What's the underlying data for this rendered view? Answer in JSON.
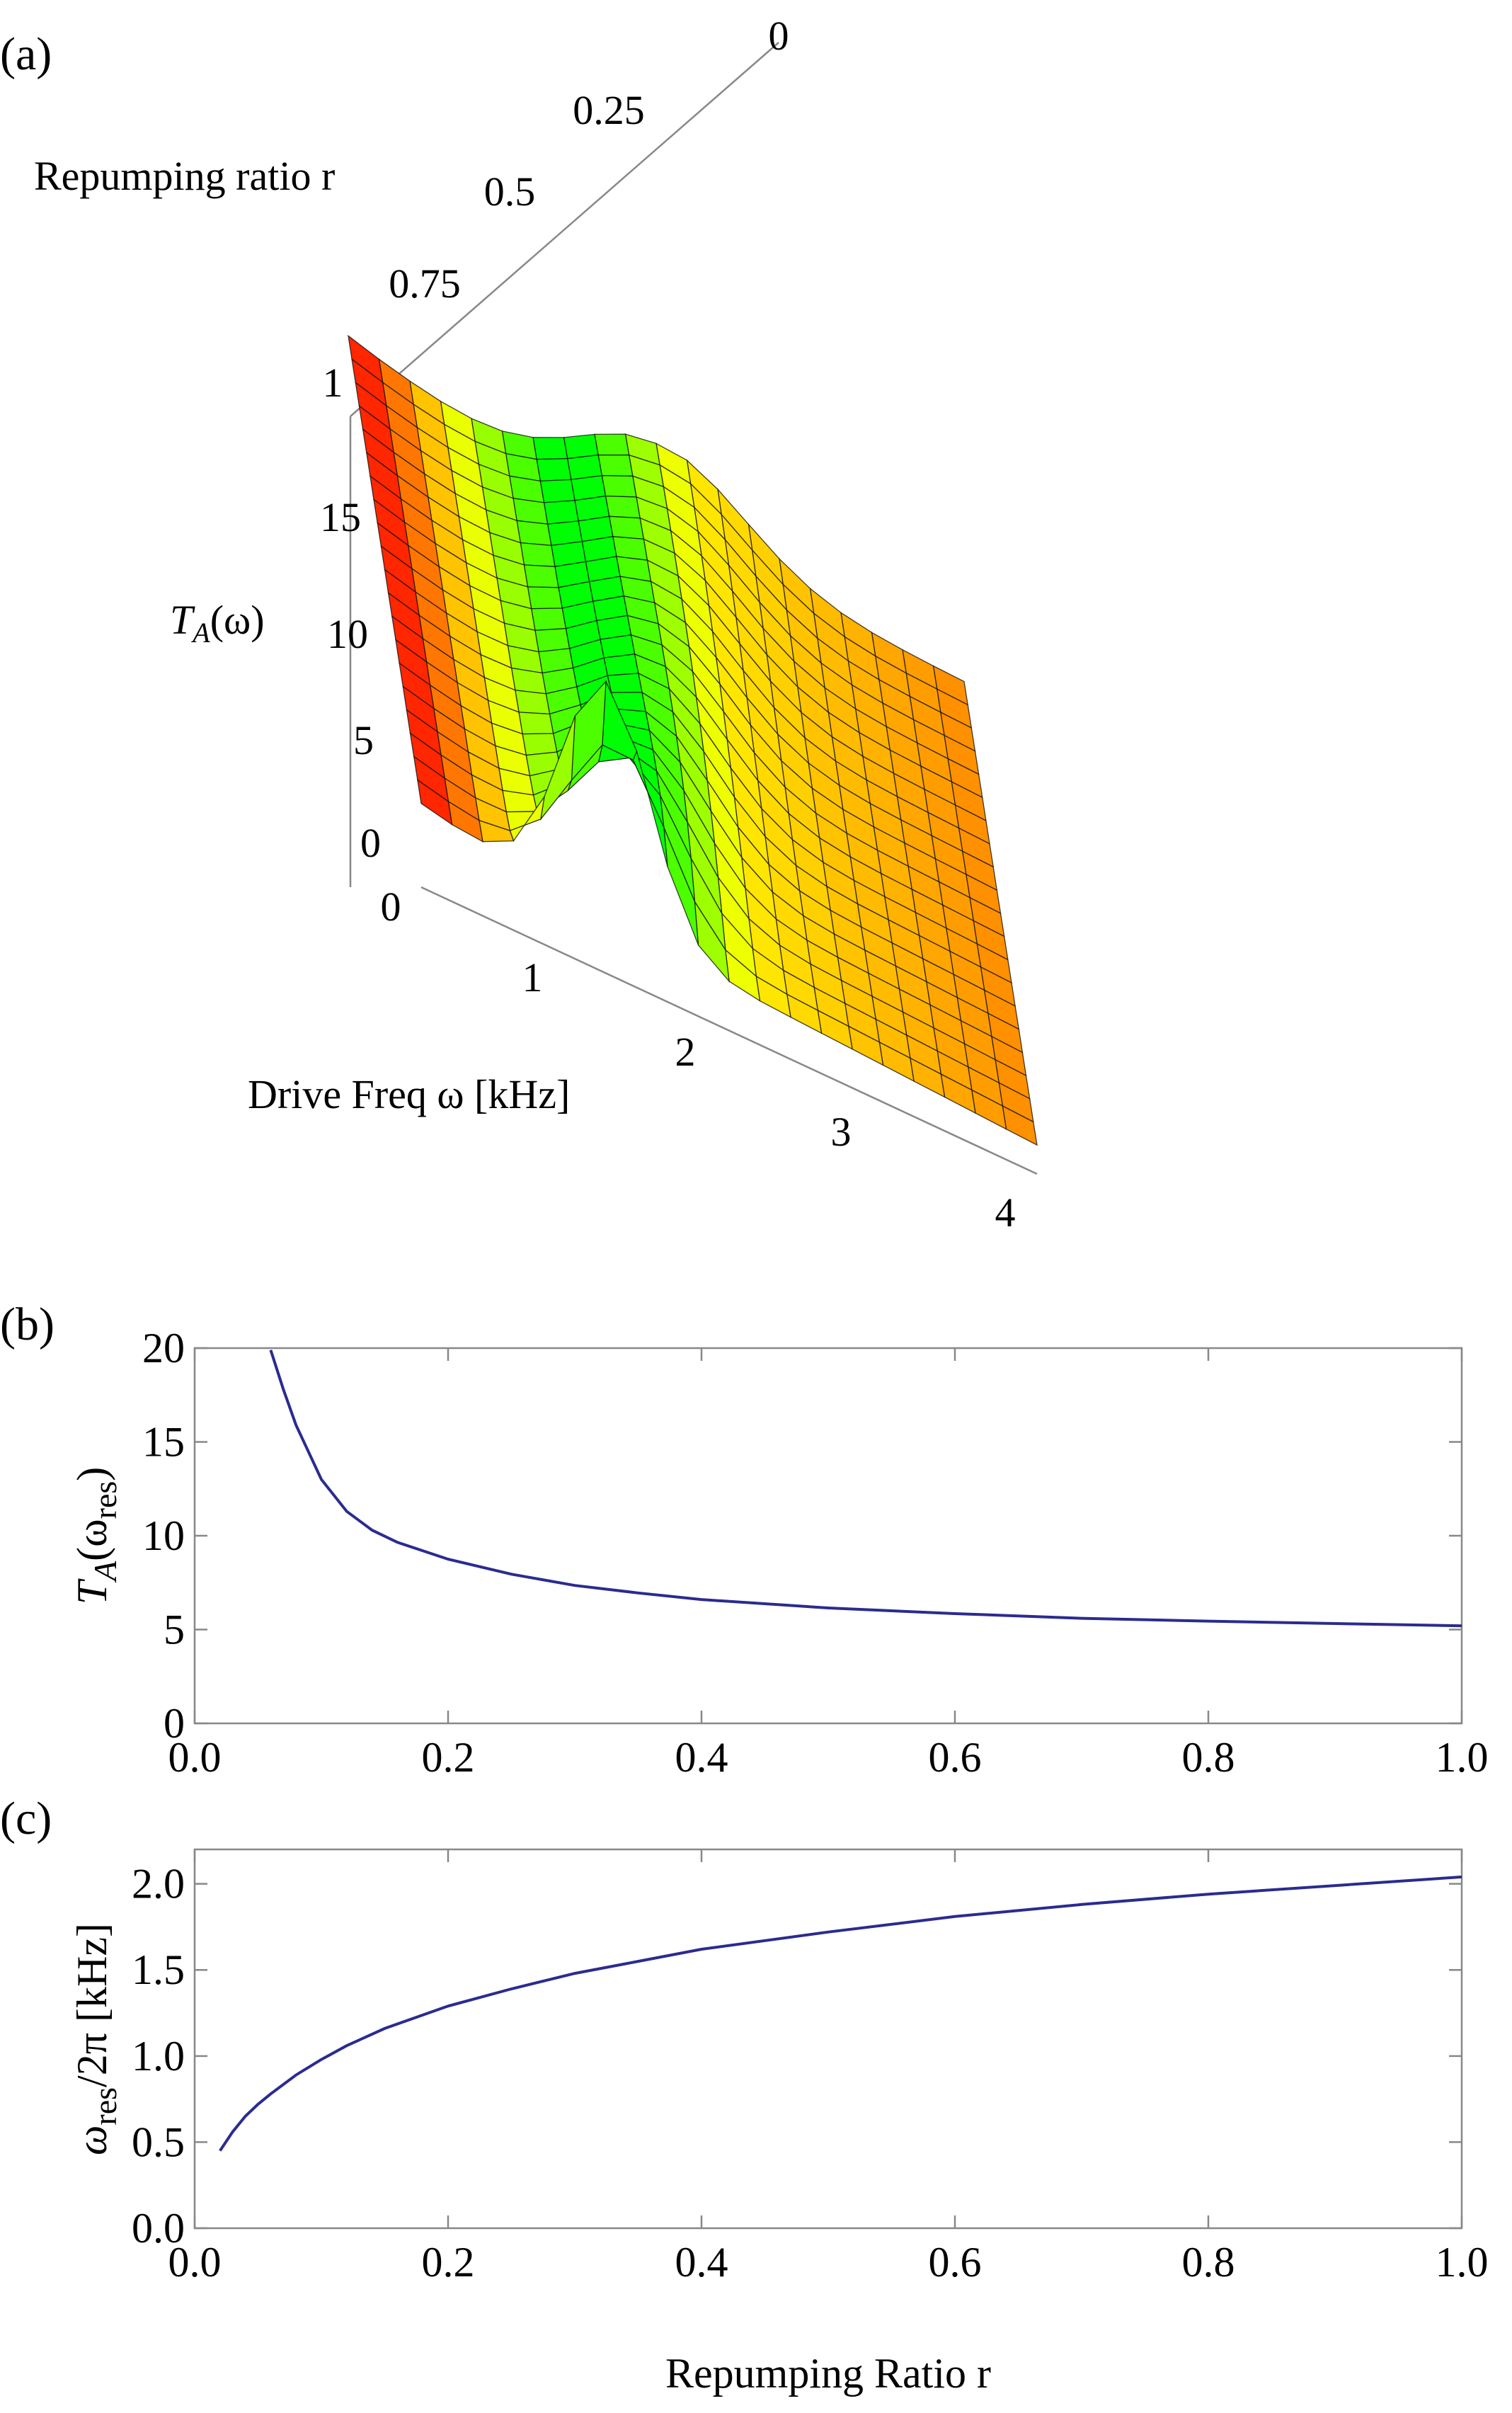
{
  "figure": {
    "panel_labels": [
      "(a)",
      "(b)",
      "(c)"
    ]
  },
  "colors": {
    "curve": "#2b2b8f",
    "axis": "#888888",
    "mesh": "#111111"
  },
  "chart_data": [
    {
      "id": "a",
      "type": "surface3d",
      "title": "",
      "zlabel_math": "T",
      "zlabel_sub": "A",
      "zlabel_arg": "(ω)",
      "ylabel": "Repumping ratio r",
      "xlabel": "Drive Freq ω [kHz]",
      "x_ticks": [
        "0",
        "1",
        "2",
        "3",
        "4"
      ],
      "x_tick_values": [
        0,
        1,
        2,
        3,
        4
      ],
      "y_ticks": [
        "0",
        "0.25",
        "0.5",
        "0.75",
        "1"
      ],
      "y_tick_values": [
        0,
        0.25,
        0.5,
        0.75,
        1
      ],
      "z_ticks": [
        "0",
        "5",
        "10",
        "15"
      ],
      "z_tick_values": [
        0,
        5,
        10,
        15
      ],
      "xlim": [
        0,
        4
      ],
      "ylim": [
        0,
        1
      ],
      "zlim": [
        0,
        20
      ],
      "grid_x": 20,
      "grid_y": 20,
      "colormap": "hue by frequency: red at ω=0, green near resonance, yellow/orange at high ω"
    },
    {
      "id": "b",
      "type": "line",
      "ylabel_math": "T",
      "ylabel_sub": "A",
      "ylabel_arg_open": "(ω",
      "ylabel_arg_sub": "res",
      "ylabel_arg_close": ")",
      "xlim": [
        0,
        1
      ],
      "ylim": [
        0,
        20
      ],
      "x_ticks": [
        "0.0",
        "0.2",
        "0.4",
        "0.6",
        "0.8",
        "1.0"
      ],
      "x_tick_values": [
        0,
        0.2,
        0.4,
        0.6,
        0.8,
        1.0
      ],
      "y_ticks": [
        "0",
        "5",
        "10",
        "15",
        "20"
      ],
      "y_tick_values": [
        0,
        5,
        10,
        15,
        20
      ],
      "series": [
        {
          "name": "T_A(ω_res)",
          "x": [
            0.06,
            0.07,
            0.08,
            0.1,
            0.12,
            0.14,
            0.16,
            0.2,
            0.25,
            0.3,
            0.35,
            0.4,
            0.5,
            0.6,
            0.7,
            0.8,
            0.9,
            1.0
          ],
          "y": [
            19.9,
            17.8,
            15.9,
            13.0,
            11.3,
            10.3,
            9.65,
            8.75,
            7.95,
            7.35,
            6.95,
            6.6,
            6.15,
            5.85,
            5.6,
            5.45,
            5.32,
            5.2
          ]
        }
      ]
    },
    {
      "id": "c",
      "type": "line",
      "ylabel_math_open": "ω",
      "ylabel_sub": "res",
      "ylabel_rest": "/2π [kHz]",
      "xlabel": "Repumping Ratio r",
      "xlim": [
        0,
        1
      ],
      "ylim": [
        0,
        2.2
      ],
      "x_ticks": [
        "0.0",
        "0.2",
        "0.4",
        "0.6",
        "0.8",
        "1.0"
      ],
      "x_tick_values": [
        0,
        0.2,
        0.4,
        0.6,
        0.8,
        1.0
      ],
      "y_ticks": [
        "0.0",
        "0.5",
        "1.0",
        "1.5",
        "2.0"
      ],
      "y_tick_values": [
        0,
        0.5,
        1.0,
        1.5,
        2.0
      ],
      "series": [
        {
          "name": "ω_res/2π",
          "x": [
            0.02,
            0.03,
            0.04,
            0.05,
            0.06,
            0.08,
            0.1,
            0.12,
            0.15,
            0.2,
            0.25,
            0.3,
            0.35,
            0.4,
            0.5,
            0.6,
            0.7,
            0.8,
            0.9,
            1.0
          ],
          "y": [
            0.45,
            0.56,
            0.65,
            0.72,
            0.78,
            0.89,
            0.98,
            1.06,
            1.16,
            1.29,
            1.39,
            1.48,
            1.55,
            1.62,
            1.72,
            1.81,
            1.88,
            1.94,
            1.99,
            2.04
          ]
        }
      ]
    }
  ]
}
